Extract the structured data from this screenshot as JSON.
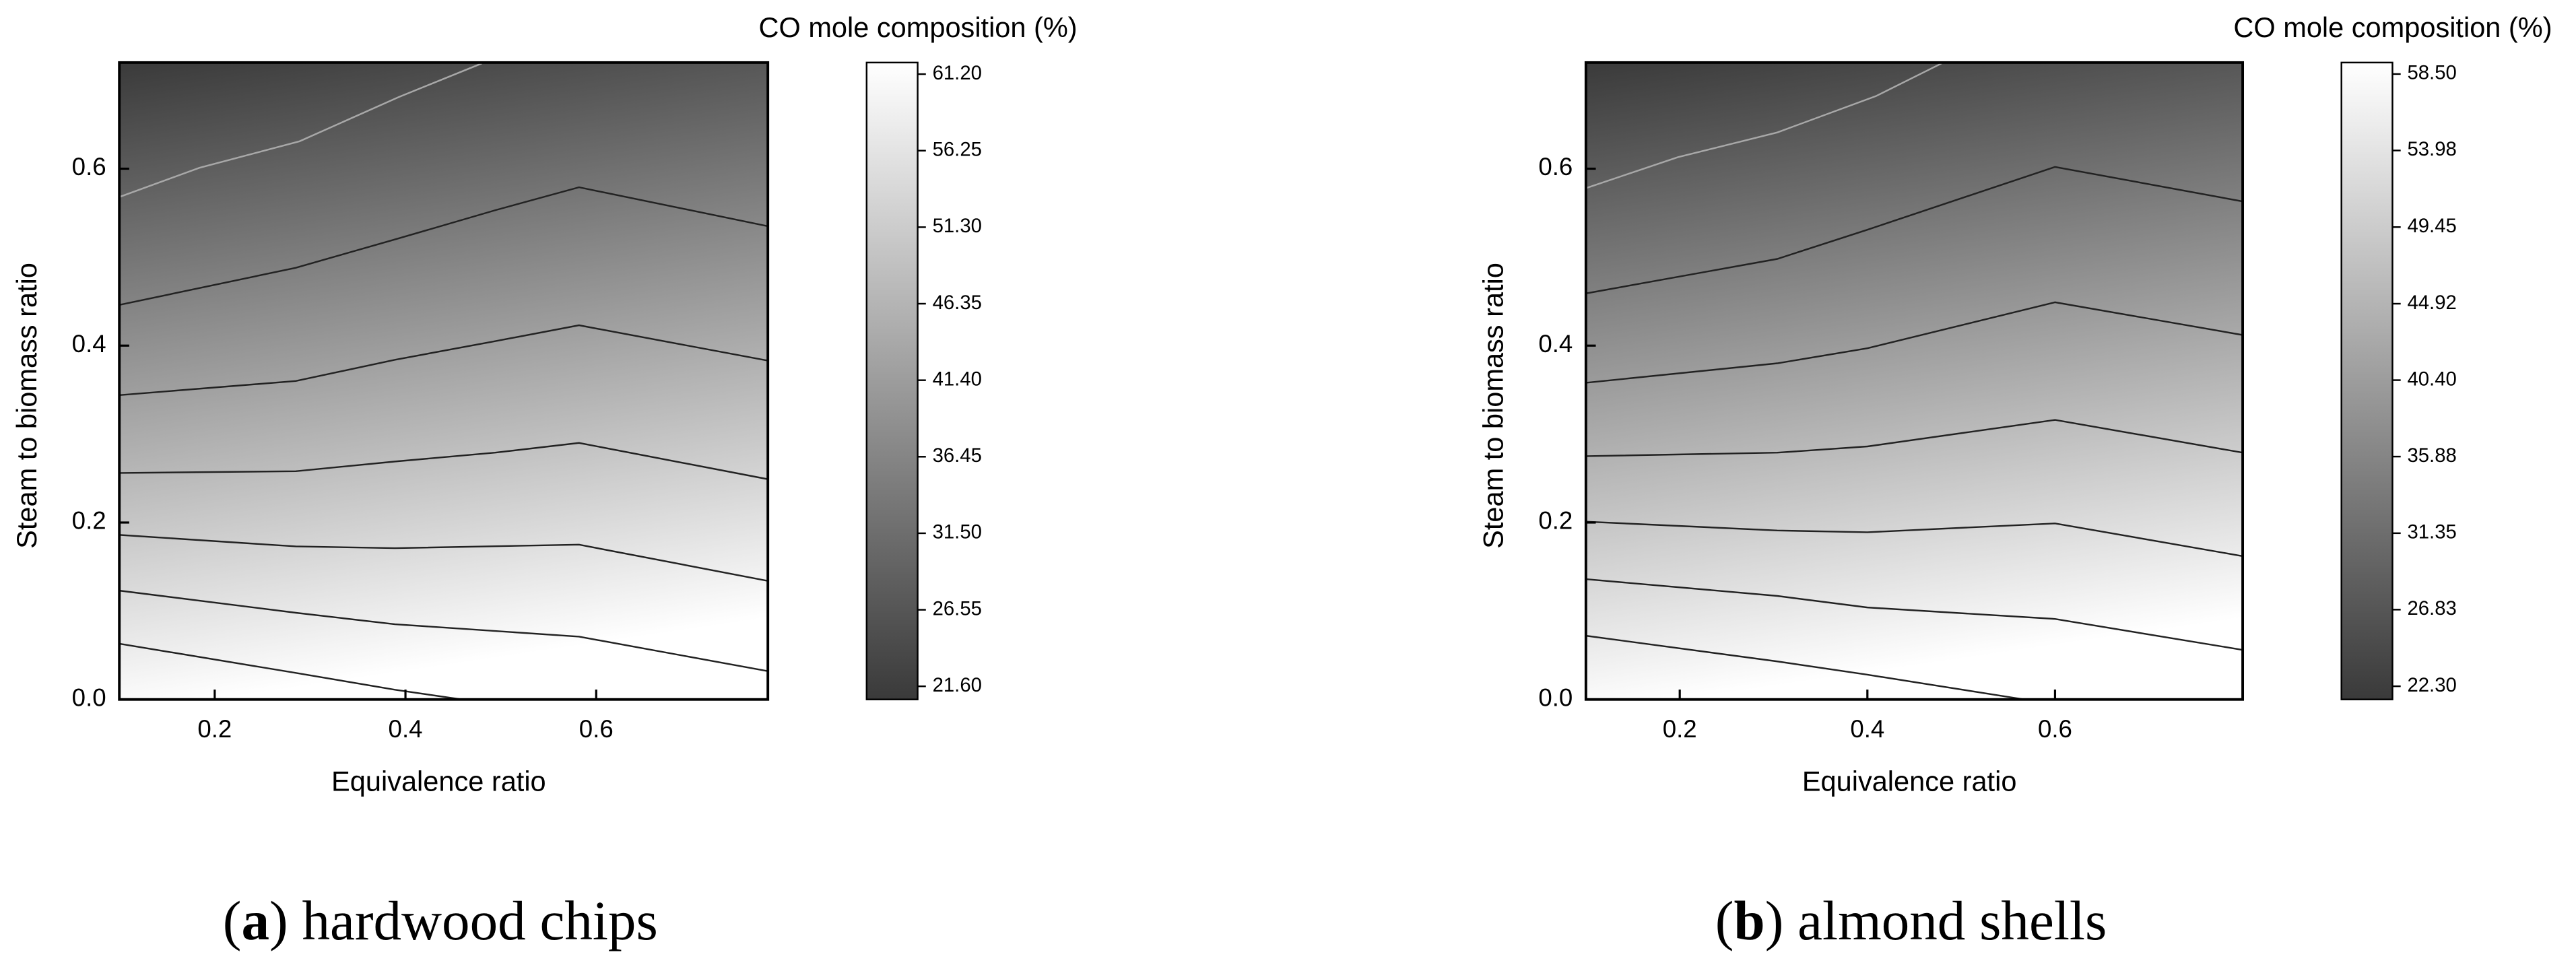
{
  "chart_data": [
    {
      "type": "contour",
      "x_label": "Equivalence ratio",
      "y_label": "Steam to biomass ratio",
      "colorbar_title": "CO mole composition (%)",
      "caption": [
        "(",
        "a",
        ") hardwood chips"
      ],
      "xlim": [
        0.1,
        0.78
      ],
      "ylim": [
        0,
        0.72
      ],
      "xticks": [
        0.2,
        0.4,
        0.6
      ],
      "yticks": [
        {
          "value": 0,
          "label": "0.0"
        },
        0.2,
        0.4,
        0.6
      ],
      "clim": [
        20.75,
        61.95
      ],
      "cticks": [
        {
          "value": 61.2,
          "label": "61.20"
        },
        56.25,
        {
          "value": 51.3,
          "label": "51.30"
        },
        46.35,
        {
          "value": 41.4,
          "label": "41.40"
        },
        36.45,
        {
          "value": 31.5,
          "label": "31.50"
        },
        26.55,
        {
          "value": 21.6,
          "label": "21.60"
        }
      ],
      "colormap": [
        "#3a3a3a",
        "#ffffff"
      ],
      "contours": [
        {
          "color": "#a8a8a8",
          "x": [
            0.1,
            0.184,
            0.289,
            0.393,
            0.48
          ],
          "y": [
            0.568,
            0.601,
            0.631,
            0.681,
            0.719
          ]
        },
        {
          "color": "#222222",
          "x": [
            0.1,
            0.285,
            0.389,
            0.494,
            0.582,
            0.78
          ],
          "y": [
            0.446,
            0.488,
            0.52,
            0.553,
            0.579,
            0.535
          ]
        },
        {
          "color": "#222222",
          "x": [
            0.1,
            0.285,
            0.389,
            0.494,
            0.582,
            0.78
          ],
          "y": [
            0.344,
            0.36,
            0.384,
            0.405,
            0.423,
            0.383
          ]
        },
        {
          "color": "#222222",
          "x": [
            0.1,
            0.285,
            0.389,
            0.494,
            0.582,
            0.78
          ],
          "y": [
            0.256,
            0.258,
            0.269,
            0.279,
            0.29,
            0.249
          ]
        },
        {
          "color": "#222222",
          "x": [
            0.1,
            0.285,
            0.389,
            0.582,
            0.78
          ],
          "y": [
            0.186,
            0.173,
            0.171,
            0.175,
            0.134
          ]
        },
        {
          "color": "#222222",
          "x": [
            0.1,
            0.285,
            0.389,
            0.582,
            0.78
          ],
          "y": [
            0.123,
            0.098,
            0.085,
            0.071,
            0.032
          ]
        },
        {
          "color": "#222222",
          "x": [
            0.1,
            0.285,
            0.389,
            0.459
          ],
          "y": [
            0.063,
            0.03,
            0.011,
            0
          ]
        }
      ]
    },
    {
      "type": "contour",
      "x_label": "Equivalence ratio",
      "y_label": "Steam to biomass ratio",
      "colorbar_title": "CO mole composition (%)",
      "caption": [
        "(",
        "b",
        ") almond shells"
      ],
      "xlim": [
        0.1,
        0.8
      ],
      "ylim": [
        0,
        0.72
      ],
      "xticks": [
        0.2,
        0.4,
        0.6
      ],
      "yticks": [
        {
          "value": 0,
          "label": "0.0"
        },
        0.2,
        0.4,
        0.6
      ],
      "clim": [
        21.52,
        59.18
      ],
      "cticks": [
        {
          "value": 58.5,
          "label": "58.50"
        },
        53.98,
        49.45,
        44.92,
        {
          "value": 40.4,
          "label": "40.40"
        },
        35.88,
        31.35,
        26.83,
        {
          "value": 22.3,
          "label": "22.30"
        }
      ],
      "colormap": [
        "#3a3a3a",
        "#ffffff"
      ],
      "contours": [
        {
          "color": "#a8a8a8",
          "x": [
            0.1,
            0.198,
            0.304,
            0.409,
            0.479
          ],
          "y": [
            0.578,
            0.613,
            0.641,
            0.682,
            0.719
          ]
        },
        {
          "color": "#222222",
          "x": [
            0.1,
            0.304,
            0.4,
            0.6,
            0.8
          ],
          "y": [
            0.459,
            0.498,
            0.531,
            0.602,
            0.563
          ]
        },
        {
          "color": "#222222",
          "x": [
            0.1,
            0.304,
            0.4,
            0.6,
            0.8
          ],
          "y": [
            0.358,
            0.38,
            0.397,
            0.449,
            0.412
          ]
        },
        {
          "color": "#222222",
          "x": [
            0.1,
            0.304,
            0.4,
            0.6,
            0.8
          ],
          "y": [
            0.275,
            0.279,
            0.286,
            0.316,
            0.279
          ]
        },
        {
          "color": "#222222",
          "x": [
            0.1,
            0.304,
            0.4,
            0.6,
            0.8
          ],
          "y": [
            0.201,
            0.191,
            0.189,
            0.199,
            0.162
          ]
        },
        {
          "color": "#222222",
          "x": [
            0.1,
            0.304,
            0.4,
            0.6,
            0.8
          ],
          "y": [
            0.136,
            0.117,
            0.104,
            0.091,
            0.056
          ]
        },
        {
          "color": "#222222",
          "x": [
            0.1,
            0.304,
            0.4,
            0.567
          ],
          "y": [
            0.072,
            0.043,
            0.028,
            0
          ]
        }
      ]
    }
  ]
}
